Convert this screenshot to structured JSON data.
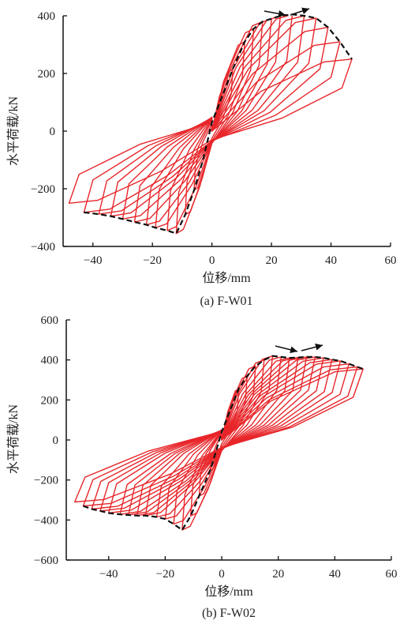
{
  "chart_data": [
    {
      "type": "line",
      "caption": "(a) F-W01",
      "xlabel": "位移/mm",
      "ylabel": "水平荷载/kN",
      "xlim": [
        -50,
        60
      ],
      "ylim": [
        -400,
        400
      ],
      "xticks": [
        -40,
        -20,
        0,
        20,
        40,
        60
      ],
      "yticks": [
        -400,
        -200,
        0,
        200,
        400
      ],
      "xtick_labels": [
        "−40",
        "−20",
        "0",
        "20",
        "40",
        "60"
      ],
      "ytick_labels": [
        "−400",
        "−200",
        "0",
        "200",
        "400"
      ],
      "grid": false,
      "series": [
        {
          "kind": "hysteresis loops",
          "color": "#e8262a",
          "cycles": [
            {
              "pos": [
                7,
                215
              ],
              "neg": [
                -6,
                -205
              ]
            },
            {
              "pos": [
                11,
                310
              ],
              "neg": [
                -9,
                -290
              ]
            },
            {
              "pos": [
                14,
                355
              ],
              "neg": [
                -12,
                -355
              ]
            },
            {
              "pos": [
                17,
                380
              ],
              "neg": [
                -15,
                -345
              ]
            },
            {
              "pos": [
                20,
                390
              ],
              "neg": [
                -19,
                -335
              ]
            },
            {
              "pos": [
                23,
                400
              ],
              "neg": [
                -22,
                -325
              ]
            },
            {
              "pos": [
                27,
                405
              ],
              "neg": [
                -26,
                -315
              ]
            },
            {
              "pos": [
                31,
                400
              ],
              "neg": [
                -30,
                -305
              ]
            },
            {
              "pos": [
                35,
                392
              ],
              "neg": [
                -34,
                -295
              ]
            },
            {
              "pos": [
                39,
                360
              ],
              "neg": [
                -38,
                -288
              ]
            },
            {
              "pos": [
                43,
                310
              ],
              "neg": [
                -43,
                -282
              ]
            },
            {
              "pos": [
                47,
                250
              ],
              "neg": [
                -48,
                -250
              ]
            }
          ]
        },
        {
          "kind": "skeleton curve (dashed)",
          "color": "#111111",
          "x": [
            -43,
            -38,
            -34,
            -30,
            -26,
            -22,
            -19,
            -15,
            -12,
            -9,
            -6,
            -3,
            0,
            3,
            7,
            11,
            14,
            17,
            20,
            23,
            27,
            31,
            35,
            39,
            43,
            47
          ],
          "y": [
            -282,
            -288,
            -295,
            -305,
            -315,
            -325,
            -335,
            -345,
            -355,
            -290,
            -205,
            -100,
            30,
            110,
            215,
            310,
            355,
            380,
            390,
            400,
            405,
            400,
            392,
            360,
            310,
            250
          ]
        }
      ],
      "annotations": [
        "arrow",
        "arrow"
      ]
    },
    {
      "type": "line",
      "caption": "(b) F-W02",
      "xlabel": "位移/mm",
      "ylabel": "水平荷载/kN",
      "xlim": [
        -55,
        60
      ],
      "ylim": [
        -600,
        600
      ],
      "xticks": [
        -40,
        -20,
        0,
        20,
        40,
        60
      ],
      "yticks": [
        -600,
        -400,
        -200,
        0,
        200,
        400,
        600
      ],
      "xtick_labels": [
        "−40",
        "−20",
        "0",
        "20",
        "40",
        "60"
      ],
      "ytick_labels": [
        "−600",
        "−400",
        "−200",
        "0",
        "200",
        "400",
        "600"
      ],
      "grid": false,
      "series": [
        {
          "kind": "hysteresis loops",
          "color": "#e8262a",
          "cycles": [
            {
              "pos": [
                6,
                255
              ],
              "neg": [
                -4,
                -150
              ]
            },
            {
              "pos": [
                9,
                320
              ],
              "neg": [
                -8,
                -280
              ]
            },
            {
              "pos": [
                12,
                370
              ],
              "neg": [
                -11,
                -380
              ]
            },
            {
              "pos": [
                15,
                400
              ],
              "neg": [
                -14,
                -450
              ]
            },
            {
              "pos": [
                18,
                420
              ],
              "neg": [
                -17,
                -420
              ]
            },
            {
              "pos": [
                21,
                415
              ],
              "neg": [
                -20,
                -395
              ]
            },
            {
              "pos": [
                24,
                410
              ],
              "neg": [
                -23,
                -385
              ]
            },
            {
              "pos": [
                27,
                412
              ],
              "neg": [
                -27,
                -378
              ]
            },
            {
              "pos": [
                30,
                415
              ],
              "neg": [
                -30,
                -378
              ]
            },
            {
              "pos": [
                33,
                415
              ],
              "neg": [
                -33,
                -375
              ]
            },
            {
              "pos": [
                36,
                410
              ],
              "neg": [
                -36,
                -372
              ]
            },
            {
              "pos": [
                39,
                402
              ],
              "neg": [
                -40,
                -365
              ]
            },
            {
              "pos": [
                42,
                395
              ],
              "neg": [
                -43,
                -355
              ]
            },
            {
              "pos": [
                45,
                380
              ],
              "neg": [
                -46,
                -345
              ]
            },
            {
              "pos": [
                48,
                365
              ],
              "neg": [
                -49,
                -330
              ]
            },
            {
              "pos": [
                50,
                355
              ],
              "neg": [
                -52,
                -310
              ]
            }
          ]
        },
        {
          "kind": "skeleton curve (dashed)",
          "color": "#111111",
          "x": [
            -49,
            -46,
            -43,
            -40,
            -36,
            -33,
            -30,
            -27,
            -23,
            -20,
            -17,
            -14,
            -11,
            -8,
            -4,
            0,
            3,
            6,
            9,
            12,
            15,
            18,
            21,
            24,
            27,
            30,
            33,
            36,
            39,
            42,
            45,
            48,
            50
          ],
          "y": [
            -330,
            -345,
            -355,
            -365,
            -372,
            -375,
            -378,
            -378,
            -385,
            -395,
            -420,
            -450,
            -380,
            -280,
            -150,
            40,
            150,
            255,
            320,
            370,
            400,
            420,
            415,
            410,
            412,
            415,
            415,
            410,
            402,
            395,
            380,
            365,
            355
          ]
        }
      ],
      "annotations": [
        "arrow",
        "arrow"
      ]
    }
  ]
}
